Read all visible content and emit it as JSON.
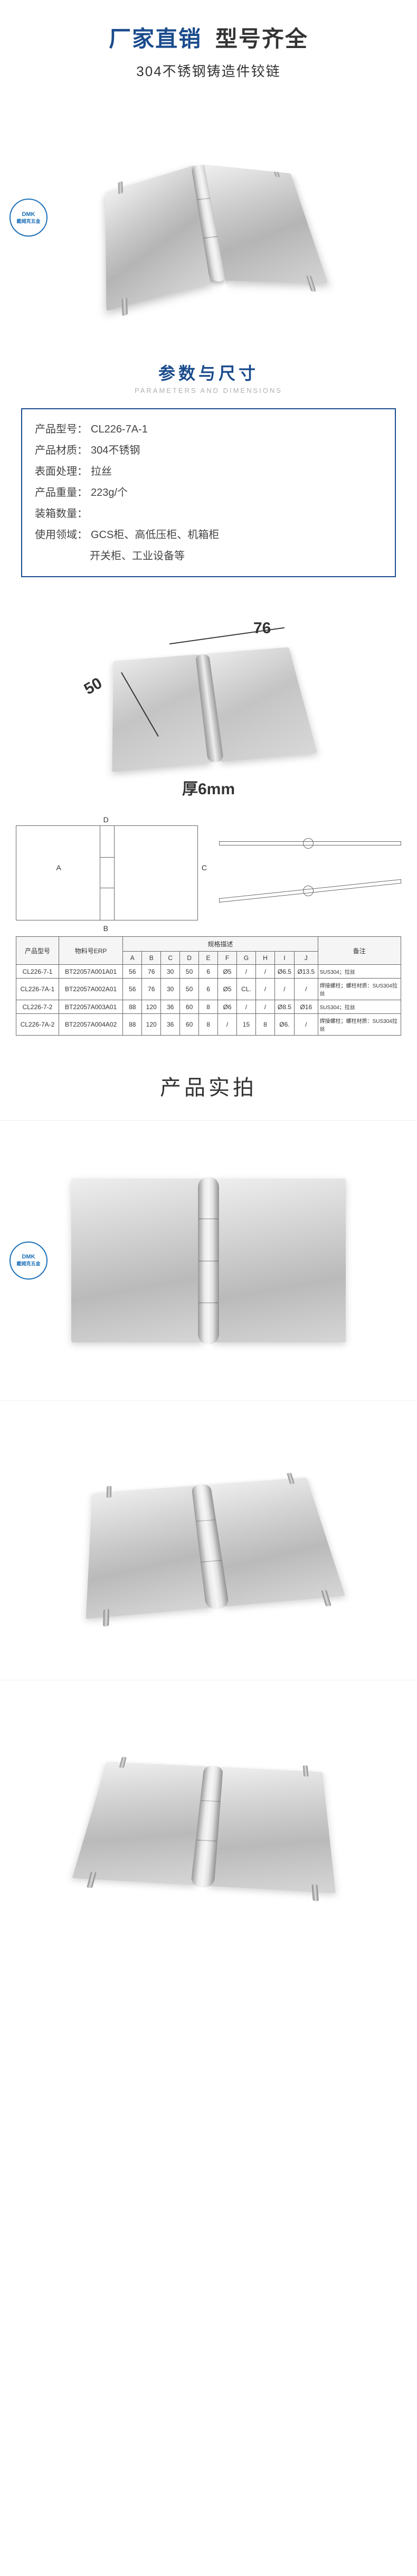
{
  "header": {
    "title_part1": "厂家直销",
    "title_part2": "型号齐全",
    "subtitle": "304不锈钢铸造件铰链",
    "title_color1": "#1a4b8c",
    "title_color2": "#333333"
  },
  "logo": {
    "brand_cn": "戴姆克五金",
    "brand_en": "DMK"
  },
  "section_params": {
    "title": "参数与尺寸",
    "title_en": "PARAMETERS AND DIMENSIONS"
  },
  "specs": {
    "label_model": "产品型号：",
    "model": "CL226-7A-1",
    "label_material": "产品材质：",
    "material": "304不锈钢",
    "label_surface": "表面处理：",
    "surface": "拉丝",
    "label_weight": "产品重量：",
    "weight": "223g/个",
    "label_qty": "装箱数量：",
    "qty": "",
    "label_usage": "使用领域：",
    "usage": "GCS柜、高低压柜、机箱柜",
    "usage2": "开关柜、工业设备等"
  },
  "dimensions": {
    "width": "76",
    "depth": "50",
    "thickness_label": "厚6mm"
  },
  "table": {
    "header_group": "规格描述",
    "col_model": "产品型号",
    "col_erp": "物料号ERP",
    "cols": [
      "A",
      "B",
      "C",
      "D",
      "E",
      "F",
      "G",
      "H",
      "I",
      "J"
    ],
    "col_remark": "备注",
    "rows": [
      {
        "model": "CL226-7-1",
        "erp": "BT22057A001A01",
        "v": [
          "56",
          "76",
          "30",
          "50",
          "6",
          "Ø5",
          "/",
          "/",
          "Ø6.5",
          "Ø13.5"
        ],
        "remark": "SUS304；拉丝"
      },
      {
        "model": "CL226-7A-1",
        "erp": "BT22057A002A01",
        "v": [
          "56",
          "76",
          "30",
          "50",
          "6",
          "Ø5",
          "CL.",
          "/",
          "/",
          "/"
        ],
        "remark": "焊接螺柱；螺柱材质：SUS304拉丝"
      },
      {
        "model": "CL226-7-2",
        "erp": "BT22057A003A01",
        "v": [
          "88",
          "120",
          "36",
          "60",
          "8",
          "Ø6",
          "/",
          "/",
          "Ø8.5",
          "Ø16"
        ],
        "remark": "SUS304；拉丝"
      },
      {
        "model": "CL226-7A-2",
        "erp": "BT22057A004A02",
        "v": [
          "88",
          "120",
          "36",
          "60",
          "8",
          "/",
          "15",
          "8",
          "Ø6.",
          "/"
        ],
        "remark": "焊接螺柱；螺柱材质：SUS304拉丝"
      }
    ]
  },
  "section_real": {
    "title": "产品实拍"
  },
  "style": {
    "primary": "#1a4b8c",
    "border": "#666666",
    "metal_light": "#eeeeee",
    "metal_dark": "#bababa"
  }
}
